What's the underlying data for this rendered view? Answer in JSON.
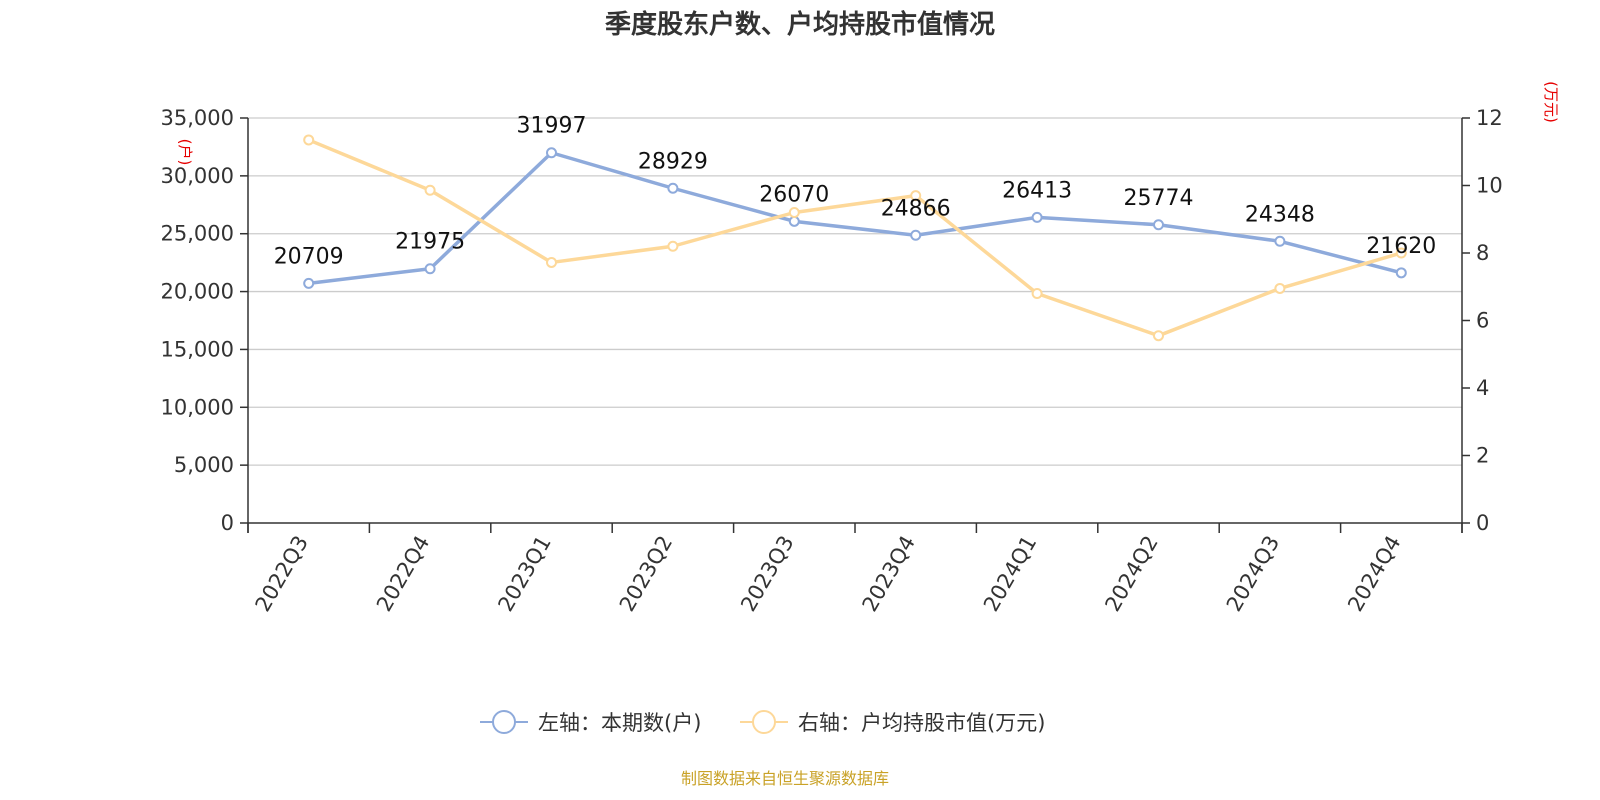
{
  "chart_data": {
    "type": "line",
    "title": "季度股东户数、户均持股市值情况",
    "categories": [
      "2022Q3",
      "2022Q4",
      "2023Q1",
      "2023Q2",
      "2023Q3",
      "2023Q4",
      "2024Q1",
      "2024Q2",
      "2024Q3",
      "2024Q4"
    ],
    "y_left": {
      "unit": "(户)",
      "range": [
        0,
        35000
      ],
      "ticks": [
        "0",
        "5,000",
        "10,000",
        "15,000",
        "20,000",
        "25,000",
        "30,000",
        "35,000"
      ],
      "tick_values": [
        0,
        5000,
        10000,
        15000,
        20000,
        25000,
        30000,
        35000
      ]
    },
    "y_right": {
      "unit": "(万元)",
      "range": [
        0,
        12
      ],
      "ticks": [
        "0",
        "2",
        "4",
        "6",
        "8",
        "10",
        "12"
      ],
      "tick_values": [
        0,
        2,
        4,
        6,
        8,
        10,
        12
      ]
    },
    "series": [
      {
        "name": "左轴：本期数(户)",
        "axis": "left",
        "color": "#8eaadb",
        "values": [
          20709,
          21975,
          31997,
          28929,
          26070,
          24866,
          26413,
          25774,
          24348,
          21620
        ],
        "labels": [
          "20709",
          "21975",
          "31997",
          "28929",
          "26070",
          "24866",
          "26413",
          "25774",
          "24348",
          "21620"
        ]
      },
      {
        "name": "右轴：户均持股市值(万元)",
        "axis": "right",
        "color": "#fdd899",
        "values": [
          11.35,
          9.86,
          7.72,
          8.2,
          9.2,
          9.7,
          6.8,
          5.55,
          6.95,
          8.0
        ]
      }
    ],
    "grid": true,
    "legend_position": "bottom",
    "unit_color": "#e60000",
    "source": "制图数据来自恒生聚源数据库",
    "source_color": "#c9a227"
  }
}
